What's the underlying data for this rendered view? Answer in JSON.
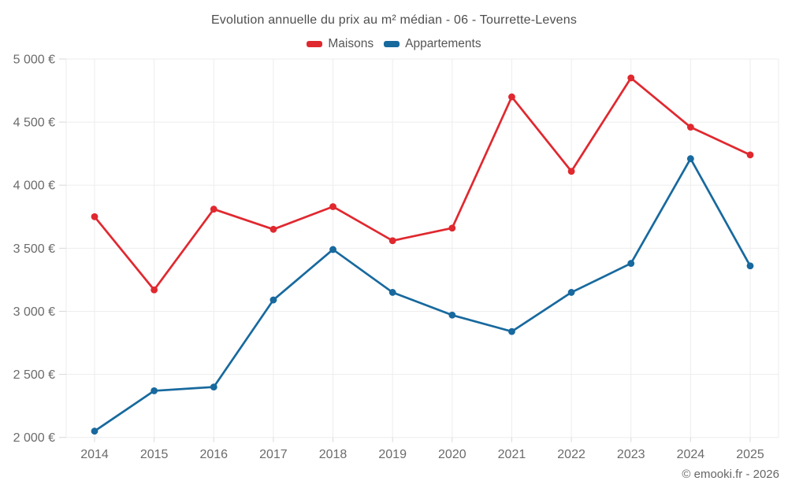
{
  "page": {
    "footer": "© emooki.fr - 2026"
  },
  "chart_data": {
    "type": "line",
    "title": "Evolution annuelle du prix au m² médian - 06 - Tourrette-Levens",
    "categories": [
      "2014",
      "2015",
      "2016",
      "2017",
      "2018",
      "2019",
      "2020",
      "2021",
      "2022",
      "2023",
      "2024",
      "2025"
    ],
    "series": [
      {
        "name": "Maisons",
        "color": "#e0282f",
        "values": [
          3750,
          3170,
          3810,
          3650,
          3830,
          3560,
          3660,
          4700,
          4110,
          4850,
          4460,
          4240
        ]
      },
      {
        "name": "Appartements",
        "color": "#17699e",
        "values": [
          2050,
          2370,
          2400,
          3090,
          3490,
          3150,
          2970,
          2840,
          3150,
          3380,
          4210,
          3360
        ]
      }
    ],
    "ylabel": "",
    "xlabel": "",
    "ylim": [
      2000,
      5000
    ],
    "ytick_step": 500,
    "ytick_labels": [
      "2 000 €",
      "2 500 €",
      "3 000 €",
      "3 500 €",
      "4 000 €",
      "4 500 €",
      "5 000 €"
    ],
    "grid": true,
    "legend_position": "top",
    "currency_unit": "€"
  }
}
